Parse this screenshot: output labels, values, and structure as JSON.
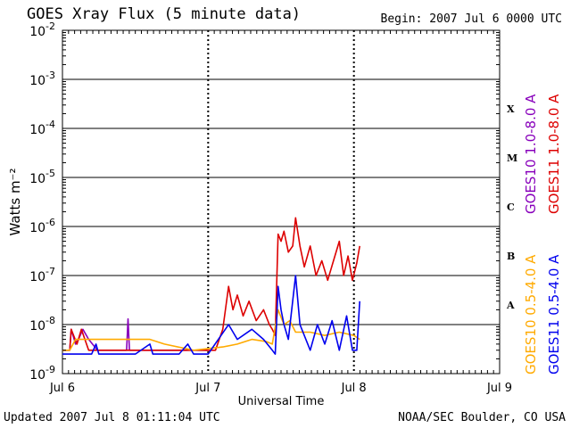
{
  "header": {
    "title": "GOES Xray Flux (5 minute data)",
    "begin": "Begin:  2007 Jul 6 0000 UTC"
  },
  "footer": {
    "updated": "Updated 2007 Jul  8 01:11:04 UTC",
    "credit": "NOAA/SEC Boulder, CO USA"
  },
  "chart_data": {
    "type": "line",
    "title": "GOES Xray Flux (5 minute data)",
    "xlabel": "Universal Time",
    "ylabel": "Watts m⁻²",
    "yscale": "log",
    "ylim": [
      1e-09,
      0.01
    ],
    "xlim": [
      0,
      3
    ],
    "x_unit": "days since 2007 Jul 6 0000 UTC",
    "x_ticks": [
      {
        "value": 0,
        "label": "Jul 6"
      },
      {
        "value": 1,
        "label": "Jul 7"
      },
      {
        "value": 2,
        "label": "Jul 8"
      },
      {
        "value": 3,
        "label": "Jul 9"
      }
    ],
    "y_ticks": [
      {
        "value": 1e-09,
        "base": "10",
        "exp": "-9"
      },
      {
        "value": 1e-08,
        "base": "10",
        "exp": "-8"
      },
      {
        "value": 1e-07,
        "base": "10",
        "exp": "-7"
      },
      {
        "value": 1e-06,
        "base": "10",
        "exp": "-6"
      },
      {
        "value": 1e-05,
        "base": "10",
        "exp": "-5"
      },
      {
        "value": 0.0001,
        "base": "10",
        "exp": "-4"
      },
      {
        "value": 0.001,
        "base": "10",
        "exp": "-3"
      },
      {
        "value": 0.01,
        "base": "10",
        "exp": "-2"
      }
    ],
    "flare_classes": [
      {
        "label": "X",
        "value": 0.00025
      },
      {
        "label": "M",
        "value": 2.5e-05
      },
      {
        "label": "C",
        "value": 2.5e-06
      },
      {
        "label": "B",
        "value": 2.5e-07
      },
      {
        "label": "A",
        "value": 2.5e-08
      }
    ],
    "grid": true,
    "legend_position": "right (vertical)",
    "series": [
      {
        "name": "GOES10 1.0-8.0 A",
        "color": "#8800bb",
        "points": [
          [
            0,
            3e-09
          ],
          [
            0.05,
            3e-09
          ],
          [
            0.06,
            8e-09
          ],
          [
            0.09,
            4e-09
          ],
          [
            0.11,
            5e-09
          ],
          [
            0.14,
            8e-09
          ],
          [
            0.18,
            5e-09
          ],
          [
            0.24,
            3e-09
          ],
          [
            0.36,
            3e-09
          ],
          [
            0.44,
            3e-09
          ],
          [
            0.45,
            1.3e-08
          ],
          [
            0.46,
            3e-09
          ],
          [
            0.65,
            3e-09
          ],
          [
            0.9,
            3e-09
          ],
          [
            1.0,
            3e-09
          ]
        ]
      },
      {
        "name": "GOES11 1.0-8.0 A",
        "color": "#dd0000",
        "points": [
          [
            0,
            3e-09
          ],
          [
            0.05,
            3e-09
          ],
          [
            0.06,
            8e-09
          ],
          [
            0.1,
            4e-09
          ],
          [
            0.13,
            8e-09
          ],
          [
            0.18,
            3e-09
          ],
          [
            0.45,
            3e-09
          ],
          [
            0.9,
            3e-09
          ],
          [
            1.0,
            3e-09
          ],
          [
            1.05,
            3e-09
          ],
          [
            1.1,
            8e-09
          ],
          [
            1.14,
            6e-08
          ],
          [
            1.17,
            2e-08
          ],
          [
            1.2,
            4e-08
          ],
          [
            1.24,
            1.5e-08
          ],
          [
            1.28,
            3e-08
          ],
          [
            1.33,
            1.2e-08
          ],
          [
            1.38,
            2e-08
          ],
          [
            1.42,
            1e-08
          ],
          [
            1.44,
            8e-09
          ],
          [
            1.46,
            6e-09
          ],
          [
            1.48,
            7e-07
          ],
          [
            1.5,
            5e-07
          ],
          [
            1.52,
            8e-07
          ],
          [
            1.55,
            3e-07
          ],
          [
            1.58,
            4e-07
          ],
          [
            1.6,
            1.5e-06
          ],
          [
            1.63,
            4e-07
          ],
          [
            1.66,
            1.5e-07
          ],
          [
            1.7,
            4e-07
          ],
          [
            1.74,
            1e-07
          ],
          [
            1.78,
            2e-07
          ],
          [
            1.82,
            8e-08
          ],
          [
            1.86,
            2e-07
          ],
          [
            1.9,
            5e-07
          ],
          [
            1.93,
            1e-07
          ],
          [
            1.96,
            2.5e-07
          ],
          [
            1.99,
            8e-08
          ],
          [
            2.02,
            1.8e-07
          ],
          [
            2.04,
            4e-07
          ]
        ]
      },
      {
        "name": "GOES10 0.5-4.0 A",
        "color": "#ffaa00",
        "points": [
          [
            0,
            3e-09
          ],
          [
            0.05,
            3e-09
          ],
          [
            0.09,
            5e-09
          ],
          [
            0.2,
            5e-09
          ],
          [
            0.35,
            5e-09
          ],
          [
            0.6,
            5e-09
          ],
          [
            0.7,
            4e-09
          ],
          [
            0.9,
            3e-09
          ],
          [
            1.1,
            3.5e-09
          ],
          [
            1.2,
            4e-09
          ],
          [
            1.3,
            5e-09
          ],
          [
            1.4,
            4.5e-09
          ],
          [
            1.44,
            4e-09
          ],
          [
            1.48,
            2e-08
          ],
          [
            1.52,
            1e-08
          ],
          [
            1.56,
            1.2e-08
          ],
          [
            1.6,
            7e-09
          ],
          [
            1.7,
            7e-09
          ],
          [
            1.8,
            6e-09
          ],
          [
            1.9,
            7e-09
          ],
          [
            2.0,
            6e-09
          ],
          [
            2.04,
            5e-09
          ]
        ]
      },
      {
        "name": "GOES11 0.5-4.0 A",
        "color": "#0000ee",
        "points": [
          [
            0,
            2.5e-09
          ],
          [
            0.2,
            2.5e-09
          ],
          [
            0.23,
            4e-09
          ],
          [
            0.25,
            2.5e-09
          ],
          [
            0.5,
            2.5e-09
          ],
          [
            0.6,
            4e-09
          ],
          [
            0.62,
            2.5e-09
          ],
          [
            0.8,
            2.5e-09
          ],
          [
            0.86,
            4e-09
          ],
          [
            0.9,
            2.5e-09
          ],
          [
            1.0,
            2.5e-09
          ],
          [
            1.14,
            1e-08
          ],
          [
            1.2,
            5e-09
          ],
          [
            1.3,
            8e-09
          ],
          [
            1.38,
            5e-09
          ],
          [
            1.44,
            3e-09
          ],
          [
            1.46,
            2.5e-09
          ],
          [
            1.48,
            6e-08
          ],
          [
            1.5,
            2e-08
          ],
          [
            1.52,
            1e-08
          ],
          [
            1.55,
            5e-09
          ],
          [
            1.6,
            1e-07
          ],
          [
            1.63,
            1e-08
          ],
          [
            1.7,
            3e-09
          ],
          [
            1.75,
            1e-08
          ],
          [
            1.8,
            4e-09
          ],
          [
            1.85,
            1.2e-08
          ],
          [
            1.9,
            3e-09
          ],
          [
            1.95,
            1.5e-08
          ],
          [
            1.99,
            3e-09
          ],
          [
            2.02,
            3e-09
          ],
          [
            2.04,
            3e-08
          ]
        ]
      }
    ]
  }
}
